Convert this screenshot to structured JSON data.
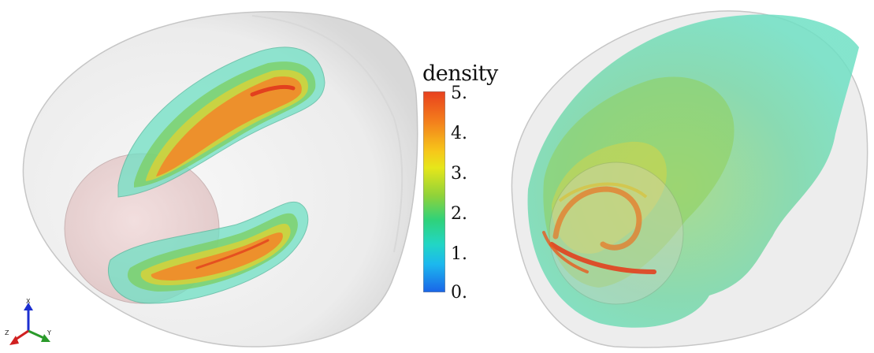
{
  "colorbar": {
    "title": "density",
    "ticks": [
      "5.",
      "4.",
      "3.",
      "2.",
      "1.",
      "0."
    ],
    "colors": [
      "#e8401e",
      "#f6c81a",
      "#8fd23a",
      "#22d6c4",
      "#1a64e8"
    ]
  },
  "axes_triad": {
    "labels": [
      "X",
      "Z",
      "Y"
    ],
    "colors": {
      "x": "#1c2fd0",
      "y": "#2a9a2a",
      "z": "#d02020"
    }
  }
}
